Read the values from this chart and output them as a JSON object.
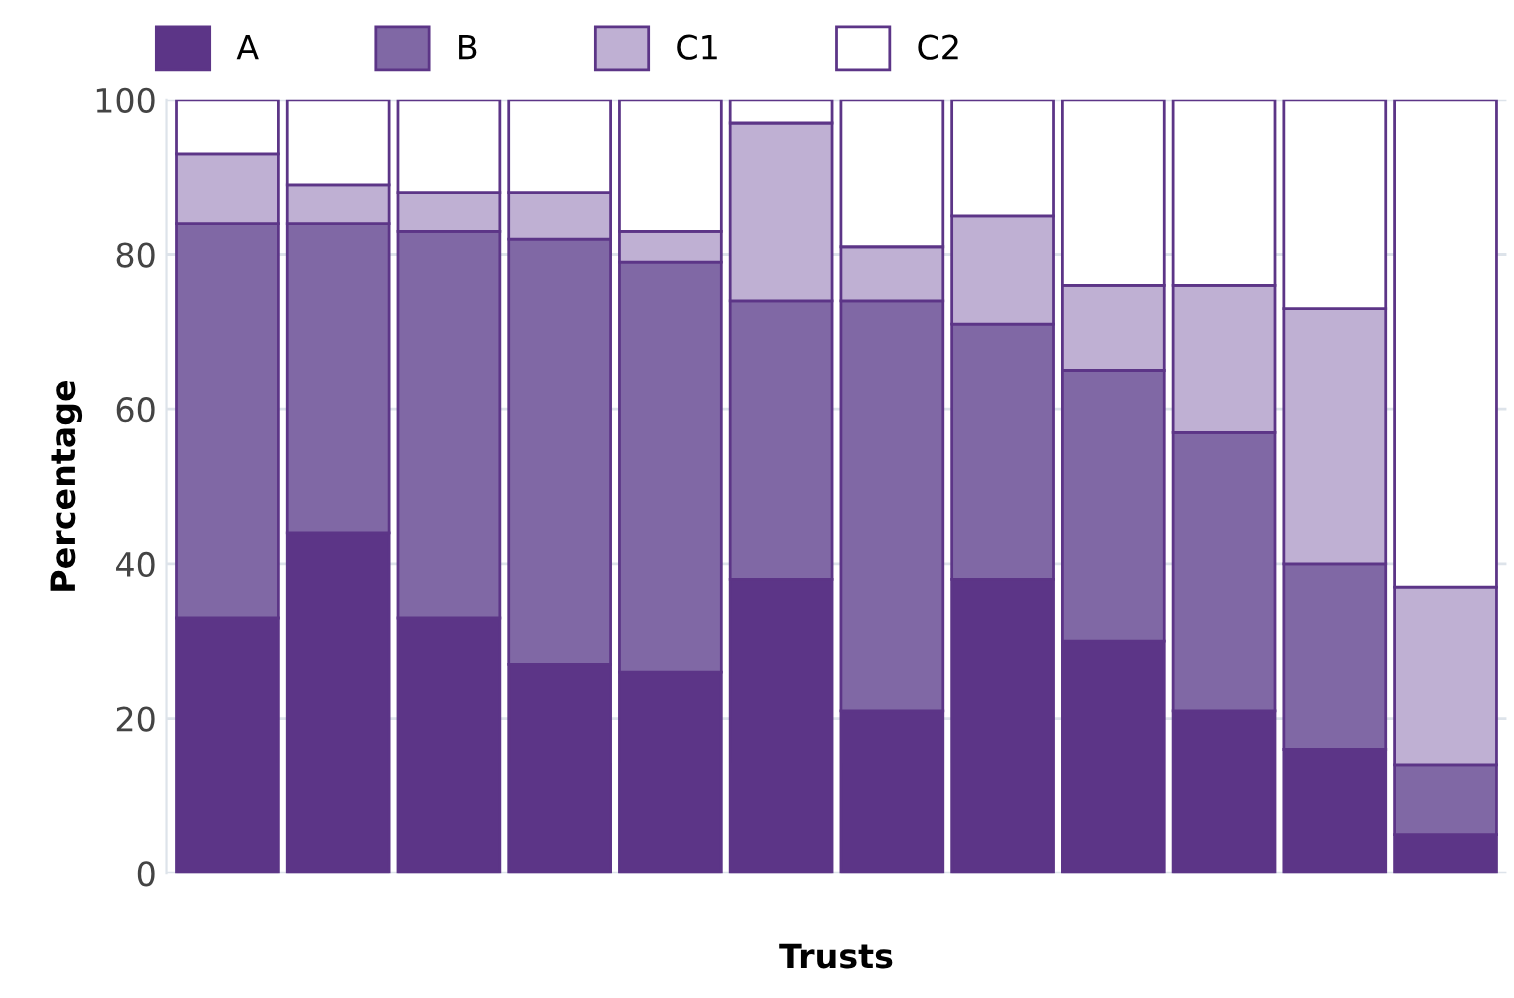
{
  "chart_data": {
    "type": "bar",
    "stacked": true,
    "xlabel": "Trusts",
    "ylabel": "Percentage",
    "categories": [
      null,
      null,
      null,
      null,
      null,
      null,
      null,
      null,
      null,
      null,
      null,
      null
    ],
    "series": [
      {
        "name": "A",
        "color": "#5c3587",
        "values": [
          33,
          44,
          33,
          27,
          26,
          38,
          21,
          38,
          30,
          21,
          16,
          5
        ]
      },
      {
        "name": "B",
        "color": "#8068a5",
        "values": [
          51,
          40,
          50,
          55,
          53,
          36,
          53,
          33,
          35,
          36,
          24,
          9
        ]
      },
      {
        "name": "C1",
        "color": "#bfb0d3",
        "values": [
          9,
          5,
          5,
          6,
          4,
          23,
          7,
          14,
          11,
          19,
          33,
          23
        ]
      },
      {
        "name": "C2",
        "color": "#ffffff",
        "values": [
          7,
          11,
          12,
          12,
          17,
          3,
          19,
          15,
          24,
          24,
          27,
          63
        ]
      }
    ],
    "ylim": [
      0,
      100
    ],
    "yticks": [
      0,
      20,
      40,
      60,
      80,
      100
    ],
    "grid": "y",
    "legend": "top left",
    "tick_labels": "y"
  }
}
